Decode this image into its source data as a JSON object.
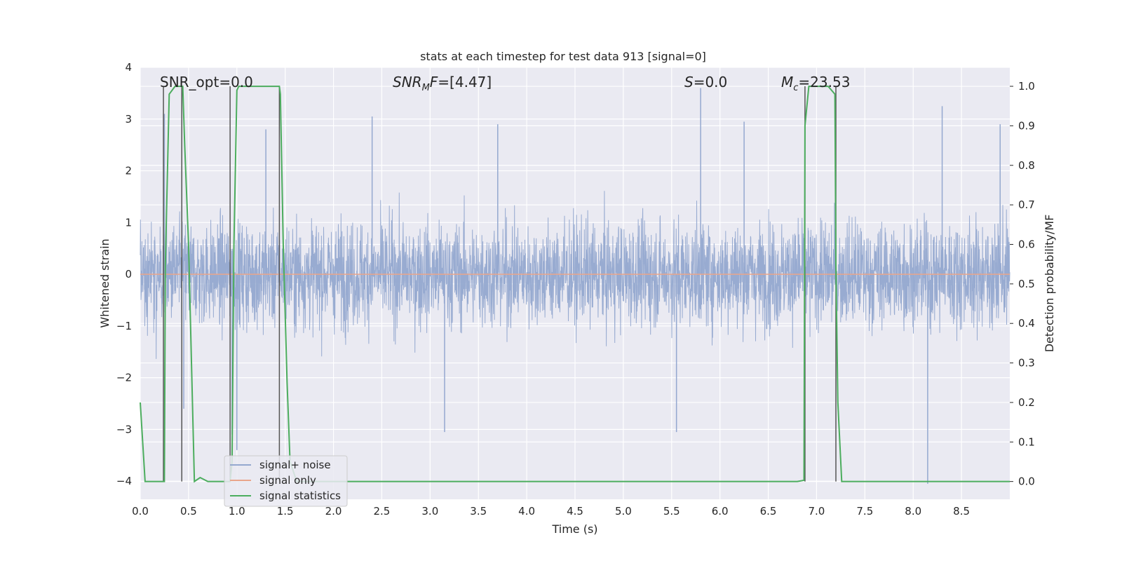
{
  "chart_data": {
    "type": "line",
    "title": "stats at each timestep for test data 913 [signal=0]",
    "xlabel": "Time (s)",
    "ylabel_left": "Whitened strain",
    "ylabel_right": "Detection probability/MF",
    "xlim": [
      0.0,
      9.0
    ],
    "ylim_left": [
      -4.35,
      4.0
    ],
    "ylim_right": [
      -0.045,
      1.048
    ],
    "grid": true,
    "legend_position": "lower-left",
    "x_ticks": [
      "0.0",
      "0.5",
      "1.0",
      "1.5",
      "2.0",
      "2.5",
      "3.0",
      "3.5",
      "4.0",
      "4.5",
      "5.0",
      "5.5",
      "6.0",
      "6.5",
      "7.0",
      "7.5",
      "8.0",
      "8.5"
    ],
    "y_left_ticks": [
      "4",
      "3",
      "2",
      "1",
      "0",
      "−1",
      "−2",
      "−3",
      "−4"
    ],
    "y_right_ticks": [
      "1.0",
      "0.9",
      "0.8",
      "0.7",
      "0.6",
      "0.5",
      "0.4",
      "0.3",
      "0.2",
      "0.1",
      "0.0"
    ],
    "annotations": [
      {
        "id": "snr-opt",
        "text": "SNR_opt=0.0"
      },
      {
        "id": "snr-mf",
        "text": "=[4.47]",
        "math_prefix": "SNR",
        "math_sub": "M",
        "math_tail": "F"
      },
      {
        "id": "s-stat",
        "text": "=0.0",
        "math_prefix": "S"
      },
      {
        "id": "mc",
        "text": "=23.53",
        "math_prefix": "M",
        "math_sub": "c"
      }
    ],
    "series": [
      {
        "name": "signal+ noise",
        "color": "#94a8cf",
        "style": "dense noise, typical envelope -1.7 to 1.7",
        "envelope": [
          -1.7,
          1.7
        ],
        "spikes_x": [
          0.25,
          0.45,
          0.95,
          1.0,
          1.3,
          2.4,
          3.15,
          3.7,
          5.55,
          5.8,
          6.25,
          8.15,
          8.3,
          8.9
        ],
        "spikes_y": [
          3.1,
          -2.6,
          -3.1,
          -3.4,
          2.8,
          3.05,
          -3.05,
          2.9,
          -3.05,
          3.6,
          2.95,
          -4.05,
          3.25,
          2.9
        ]
      },
      {
        "name": "signal only",
        "color": "#e9a58b",
        "x": [
          0.0,
          9.0
        ],
        "y": [
          0.0,
          0.0
        ]
      },
      {
        "name": "signal statistics",
        "color": "#4cad5e",
        "x": [
          0.0,
          0.05,
          0.24,
          0.25,
          0.26,
          0.3,
          0.36,
          0.42,
          0.44,
          0.46,
          0.5,
          0.56,
          0.62,
          0.7,
          0.8,
          0.93,
          0.95,
          0.97,
          1.0,
          1.02,
          1.44,
          1.45,
          1.48,
          1.52,
          1.55,
          1.62,
          6.8,
          6.87,
          6.88,
          6.92,
          6.93,
          7.12,
          7.19,
          7.2,
          7.22,
          7.26,
          7.35,
          9.0
        ],
        "y": [
          0.2,
          0.0,
          0.0,
          0.0,
          0.55,
          0.98,
          1.0,
          1.0,
          1.0,
          0.85,
          0.6,
          0.0,
          0.01,
          0.0,
          0.0,
          0.0,
          0.05,
          0.6,
          0.99,
          1.0,
          1.0,
          0.98,
          0.6,
          0.25,
          0.05,
          0.0,
          0.0,
          0.003,
          0.9,
          1.0,
          1.0,
          1.0,
          0.98,
          0.55,
          0.2,
          0.0,
          0.0,
          0.0
        ]
      }
    ],
    "event_markers": {
      "color": "#555555",
      "x": [
        0.24,
        0.43,
        0.93,
        1.44,
        6.88,
        7.2
      ]
    }
  }
}
